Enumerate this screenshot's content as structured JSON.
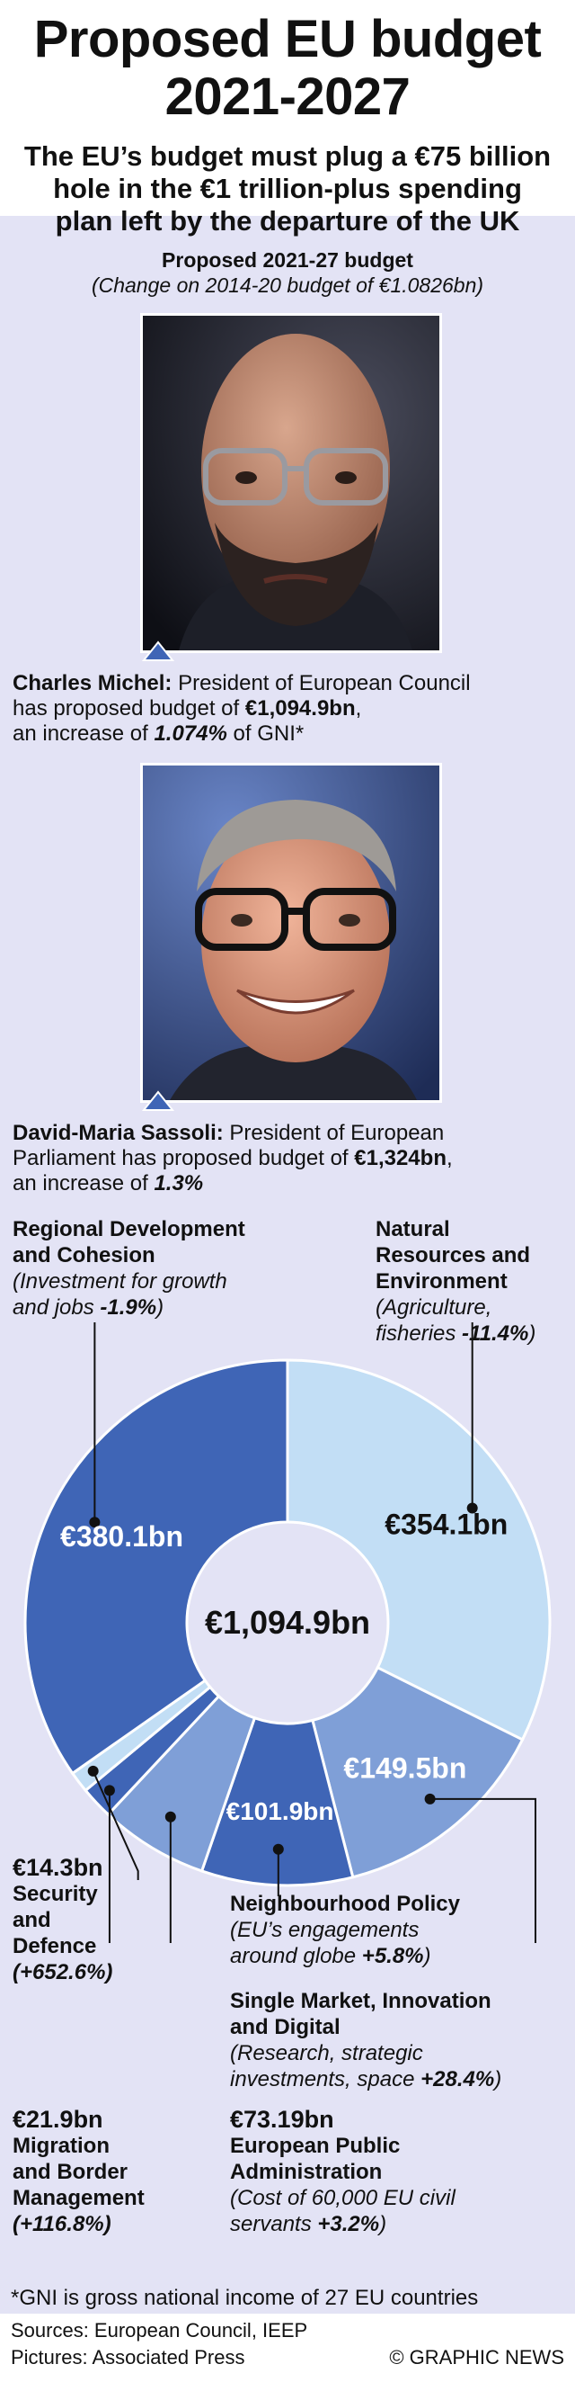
{
  "header": {
    "title_line1": "Proposed EU budget",
    "title_line2": "2021-2027",
    "subtitle_line1": "The EU’s budget must plug a €75 billion",
    "subtitle_line2": "hole in the €1 trillion-plus spending",
    "subtitle_line3": "plan left by the departure of the UK"
  },
  "chart_heading": {
    "title": "Proposed 2021-27 budget",
    "subtitle": "(Change on 2014-20 budget of €1.0826bn)"
  },
  "michel": {
    "name": "Charles Michel:",
    "line1": "President of European Council",
    "line2_pre": "has proposed budget of ",
    "amount": "€1,094.9bn",
    "line2_post": ",",
    "line3_pre": "an increase of ",
    "pct": "1.074%",
    "line3_post": " of GNI*"
  },
  "sassoli": {
    "name": "David-Maria Sassoli:",
    "line1": "President of European",
    "line2_pre": "Parliament has proposed budget of ",
    "amount": "€1,324bn",
    "line2_post": ",",
    "line3_pre": "an increase of ",
    "pct": "1.3%"
  },
  "chart_data": {
    "type": "pie",
    "title": "Proposed 2021-27 budget",
    "subtitle": "(Change on 2014-20 budget of €1.0826bn)",
    "center_label": "€1,094.9bn",
    "total": 1094.9,
    "unit": "€bn",
    "slices": [
      {
        "name": "Natural Resources and Environment",
        "value": 354.1,
        "label": "€354.1bn",
        "change": "-11.4%",
        "color": "#c2def5"
      },
      {
        "name": "Single Market, Innovation and Digital",
        "value": 149.5,
        "label": "€149.5bn",
        "change": "+28.4%",
        "color": "#7f9fd7"
      },
      {
        "name": "Neighbourhood Policy",
        "value": 101.9,
        "label": "€101.9bn",
        "change": "+5.8%",
        "color": "#3f65b6"
      },
      {
        "name": "European Public Administration",
        "value": 73.19,
        "label": "€73.19bn",
        "change": "+3.2%",
        "color": "#7f9fd7"
      },
      {
        "name": "Migration and Border Management",
        "value": 21.9,
        "label": "€21.9bn",
        "change": "+116.8%",
        "color": "#3f65b6"
      },
      {
        "name": "Security and Defence",
        "value": 14.3,
        "label": "€14.3bn",
        "change": "+652.6%",
        "color": "#c2def5"
      },
      {
        "name": "Regional Development and Cohesion",
        "value": 380.1,
        "label": "€380.1bn",
        "change": "-1.9%",
        "color": "#3f65b6"
      }
    ]
  },
  "categories": {
    "regional": {
      "name1": "Regional Development",
      "name2": "and Cohesion",
      "desc1": "(Investment for growth",
      "desc2": "and jobs ",
      "change": "-1.9%",
      "close": ")"
    },
    "natural": {
      "name1": "Natural",
      "name2": "Resources and",
      "name3": "Environment",
      "desc1": "(Agriculture,",
      "desc2": "fisheries ",
      "change": "-11.4%",
      "close": ")"
    },
    "security": {
      "amount": "€14.3bn",
      "name1": "Security",
      "name2": "and",
      "name3": "Defence",
      "change": "(+652.6%)"
    },
    "migration": {
      "amount": "€21.9bn",
      "name1": "Migration",
      "name2": "and Border",
      "name3": "Management",
      "change": "(+116.8%)"
    },
    "admin": {
      "amount": "€73.19bn",
      "name1": "European Public",
      "name2": "Administration",
      "desc1": "(Cost of 60,000 EU civil",
      "desc2": "servants ",
      "change": "+3.2%",
      "close": ")"
    },
    "neighbourhood": {
      "name1": "Neighbourhood Policy",
      "desc1": "(EU’s engagements",
      "desc2": "around globe ",
      "change": "+5.8%",
      "close": ")"
    },
    "single": {
      "name1": "Single Market, Innovation",
      "name2": "and Digital",
      "desc1": "(Research, strategic",
      "desc2": "investments, space ",
      "change": "+28.4%",
      "close": ")"
    }
  },
  "footnote": "*GNI is gross national income of 27 EU countries",
  "footer": {
    "sources": "Sources: European Council, IEEP",
    "pictures": "Pictures: Associated Press",
    "credit": "© GRAPHIC NEWS"
  }
}
